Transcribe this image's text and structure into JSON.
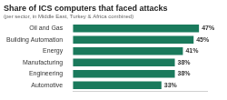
{
  "chart_data": {
    "type": "bar",
    "orientation": "horizontal",
    "title": "Share of ICS computers that faced attacks",
    "subtitle": "(per sector, in Middle East, Turkey & Africa combined)",
    "categories": [
      "Oil and Gas",
      "Building Automation",
      "Energy",
      "Manufacturing",
      "Engineering",
      "Automotive"
    ],
    "values": [
      47,
      45,
      41,
      38,
      38,
      33
    ],
    "value_labels": [
      "47%",
      "45%",
      "41%",
      "38%",
      "38%",
      "33%"
    ],
    "color": "#1a7a5c",
    "xlim": [
      0,
      50
    ],
    "grid": false,
    "data_labels": true,
    "tick_labels": "y"
  }
}
